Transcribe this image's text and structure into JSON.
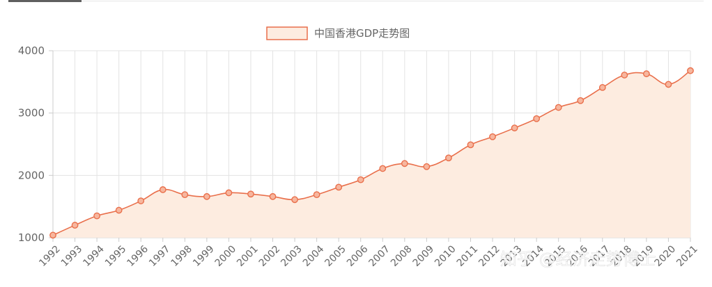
{
  "chart_data": {
    "type": "line",
    "area": true,
    "smooth": true,
    "legend": {
      "label": "中国香港GDP走势图",
      "placement": "top-center"
    },
    "x": [
      "1992",
      "1993",
      "1994",
      "1995",
      "1996",
      "1997",
      "1998",
      "1999",
      "2000",
      "2001",
      "2002",
      "2003",
      "2004",
      "2005",
      "2006",
      "2007",
      "2008",
      "2009",
      "2010",
      "2011",
      "2012",
      "2013",
      "2014",
      "2015",
      "2016",
      "2017",
      "2018",
      "2019",
      "2020",
      "2021"
    ],
    "series": [
      {
        "name": "中国香港GDP走势图",
        "values": [
          1040,
          1200,
          1350,
          1440,
          1590,
          1770,
          1690,
          1660,
          1720,
          1700,
          1660,
          1610,
          1690,
          1810,
          1930,
          2110,
          2190,
          2140,
          2280,
          2490,
          2620,
          2760,
          2910,
          3090,
          3200,
          3410,
          3610,
          3630,
          3460,
          3680
        ]
      }
    ],
    "yticks": [
      1000,
      2000,
      3000,
      4000
    ],
    "ylim": [
      1000,
      4000
    ],
    "grid": true,
    "colors": {
      "line": "#e96f4b",
      "fill": "#fdece0",
      "grid": "#e3e3e3",
      "axis": "#cccccc",
      "marker_fill": "#f7b69e"
    }
  },
  "watermark": "知乎 @经济走势博士"
}
